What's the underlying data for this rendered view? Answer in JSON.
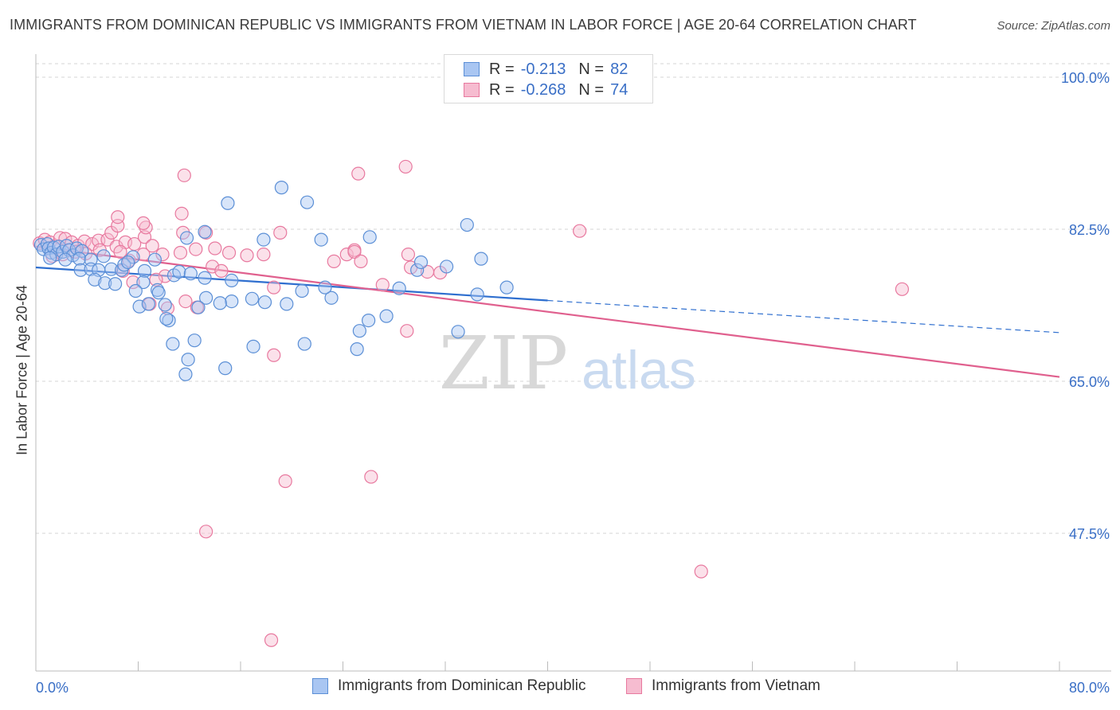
{
  "title": "IMMIGRANTS FROM DOMINICAN REPUBLIC VS IMMIGRANTS FROM VIETNAM IN LABOR FORCE | AGE 20-64 CORRELATION CHART",
  "source": "Source: ZipAtlas.com",
  "watermark": {
    "zip": "ZIP",
    "atlas": "atlas"
  },
  "legend": {
    "series1": {
      "r_label": "R =",
      "r_value": "-0.213",
      "n_label": "N =",
      "n_value": "82"
    },
    "series2": {
      "r_label": "R =",
      "r_value": "-0.268",
      "n_label": "N =",
      "n_value": "74"
    }
  },
  "bottom_legend": {
    "series1": "Immigrants from Dominican Republic",
    "series2": "Immigrants from Vietnam"
  },
  "colors": {
    "blue_fill": "#a9c6f2",
    "blue_stroke": "#5b8fd6",
    "blue_line": "#2f6fcf",
    "pink_fill": "#f6bcd0",
    "pink_stroke": "#e8799f",
    "pink_line": "#e0608e",
    "axis_label": "#3a6fc6",
    "grid": "#d6d6d6"
  },
  "chart_data": {
    "type": "scatter",
    "title": "IMMIGRANTS FROM DOMINICAN REPUBLIC VS IMMIGRANTS FROM VIETNAM IN LABOR FORCE | AGE 20-64 CORRELATION CHART",
    "xlabel": "",
    "ylabel": "In Labor Force | Age 20-64",
    "xlim": [
      0,
      80
    ],
    "ylim": [
      32,
      102
    ],
    "x_tick_labels": [
      "0.0%",
      "80.0%"
    ],
    "y_ticks": [
      100.0,
      82.5,
      65.0,
      47.5
    ],
    "y_tick_labels": [
      "100.0%",
      "82.5%",
      "65.0%",
      "47.5%"
    ],
    "series": [
      {
        "name": "Immigrants from Dominican Republic",
        "color": "blue",
        "R": -0.213,
        "N": 82,
        "points": [
          [
            0.4,
            80.7
          ],
          [
            0.6,
            80.2
          ],
          [
            0.9,
            80.8
          ],
          [
            1.0,
            80.3
          ],
          [
            1.2,
            79.8
          ],
          [
            1.4,
            80.4
          ],
          [
            1.6,
            79.6
          ],
          [
            1.8,
            80.5
          ],
          [
            2.1,
            79.9
          ],
          [
            2.4,
            80.6
          ],
          [
            2.6,
            80.1
          ],
          [
            2.9,
            79.5
          ],
          [
            3.2,
            80.3
          ],
          [
            3.6,
            80.0
          ],
          [
            1.1,
            79.2
          ],
          [
            2.3,
            79.0
          ],
          [
            3.4,
            79.1
          ],
          [
            4.3,
            79.0
          ],
          [
            5.3,
            79.4
          ],
          [
            7.6,
            79.3
          ],
          [
            9.3,
            79.0
          ],
          [
            3.5,
            77.8
          ],
          [
            4.3,
            77.9
          ],
          [
            4.9,
            77.8
          ],
          [
            5.9,
            77.9
          ],
          [
            6.7,
            77.8
          ],
          [
            8.5,
            77.7
          ],
          [
            10.8,
            77.2
          ],
          [
            11.2,
            77.6
          ],
          [
            12.1,
            77.4
          ],
          [
            13.2,
            76.9
          ],
          [
            15.3,
            76.6
          ],
          [
            6.9,
            78.4
          ],
          [
            7.2,
            78.7
          ],
          [
            4.6,
            76.7
          ],
          [
            5.4,
            76.3
          ],
          [
            6.2,
            76.2
          ],
          [
            8.4,
            76.4
          ],
          [
            9.5,
            75.5
          ],
          [
            9.6,
            75.2
          ],
          [
            7.8,
            75.4
          ],
          [
            13.3,
            74.6
          ],
          [
            15.3,
            74.2
          ],
          [
            17.9,
            74.1
          ],
          [
            19.6,
            73.9
          ],
          [
            14.4,
            74.0
          ],
          [
            16.9,
            74.5
          ],
          [
            12.7,
            73.5
          ],
          [
            10.4,
            72.0
          ],
          [
            8.1,
            73.6
          ],
          [
            8.8,
            73.9
          ],
          [
            10.1,
            73.8
          ],
          [
            10.2,
            72.2
          ],
          [
            10.7,
            69.3
          ],
          [
            11.9,
            67.5
          ],
          [
            12.4,
            69.7
          ],
          [
            14.8,
            66.5
          ],
          [
            11.7,
            65.8
          ],
          [
            17.0,
            69.0
          ],
          [
            21.0,
            69.3
          ],
          [
            25.1,
            68.7
          ],
          [
            26.0,
            72.0
          ],
          [
            25.3,
            70.8
          ],
          [
            27.4,
            72.5
          ],
          [
            23.1,
            74.6
          ],
          [
            22.6,
            75.8
          ],
          [
            20.8,
            75.4
          ],
          [
            28.4,
            75.7
          ],
          [
            29.8,
            77.8
          ],
          [
            30.1,
            78.7
          ],
          [
            32.1,
            78.2
          ],
          [
            17.8,
            81.3
          ],
          [
            19.2,
            87.3
          ],
          [
            21.2,
            85.6
          ],
          [
            15.0,
            85.5
          ],
          [
            11.8,
            81.5
          ],
          [
            13.2,
            82.2
          ],
          [
            22.3,
            81.3
          ],
          [
            26.1,
            81.6
          ],
          [
            33.7,
            83.0
          ],
          [
            34.8,
            79.1
          ],
          [
            34.5,
            75.0
          ],
          [
            36.8,
            75.8
          ],
          [
            33.0,
            70.7
          ]
        ]
      },
      {
        "name": "Immigrants from Vietnam",
        "color": "pink",
        "R": -0.268,
        "N": 74,
        "points": [
          [
            0.3,
            80.9
          ],
          [
            0.7,
            81.3
          ],
          [
            1.1,
            81.0
          ],
          [
            1.5,
            80.6
          ],
          [
            1.9,
            81.5
          ],
          [
            2.3,
            81.4
          ],
          [
            2.8,
            81.0
          ],
          [
            3.3,
            80.6
          ],
          [
            3.8,
            81.1
          ],
          [
            4.4,
            80.8
          ],
          [
            4.9,
            81.2
          ],
          [
            5.6,
            81.3
          ],
          [
            6.3,
            80.5
          ],
          [
            7.0,
            81.0
          ],
          [
            7.7,
            80.8
          ],
          [
            8.5,
            81.6
          ],
          [
            9.1,
            80.6
          ],
          [
            1.3,
            79.4
          ],
          [
            2.1,
            79.6
          ],
          [
            3.1,
            79.9
          ],
          [
            3.9,
            79.7
          ],
          [
            5.0,
            80.1
          ],
          [
            6.6,
            79.9
          ],
          [
            7.3,
            78.9
          ],
          [
            8.4,
            79.6
          ],
          [
            9.9,
            79.6
          ],
          [
            11.3,
            79.8
          ],
          [
            12.5,
            80.2
          ],
          [
            14.0,
            80.3
          ],
          [
            15.1,
            79.8
          ],
          [
            16.5,
            79.5
          ],
          [
            17.8,
            79.6
          ],
          [
            13.8,
            78.2
          ],
          [
            14.5,
            77.7
          ],
          [
            10.1,
            77.1
          ],
          [
            9.4,
            76.7
          ],
          [
            6.8,
            77.7
          ],
          [
            7.6,
            76.4
          ],
          [
            8.9,
            73.9
          ],
          [
            10.3,
            73.4
          ],
          [
            11.7,
            74.2
          ],
          [
            12.6,
            73.5
          ],
          [
            5.9,
            82.1
          ],
          [
            6.4,
            82.9
          ],
          [
            8.6,
            82.7
          ],
          [
            11.5,
            82.1
          ],
          [
            13.3,
            82.1
          ],
          [
            6.4,
            83.9
          ],
          [
            8.4,
            83.2
          ],
          [
            11.4,
            84.3
          ],
          [
            11.6,
            88.7
          ],
          [
            19.1,
            82.1
          ],
          [
            24.3,
            79.6
          ],
          [
            24.9,
            80.1
          ],
          [
            24.9,
            79.9
          ],
          [
            23.3,
            78.8
          ],
          [
            25.4,
            78.8
          ],
          [
            18.6,
            75.8
          ],
          [
            27.1,
            76.1
          ],
          [
            29.1,
            79.6
          ],
          [
            29.3,
            78.1
          ],
          [
            30.6,
            77.6
          ],
          [
            31.6,
            77.5
          ],
          [
            29.0,
            70.8
          ],
          [
            18.6,
            68.0
          ],
          [
            25.2,
            88.9
          ],
          [
            28.9,
            89.7
          ],
          [
            42.5,
            82.3
          ],
          [
            67.7,
            75.6
          ],
          [
            19.5,
            53.5
          ],
          [
            26.2,
            54.0
          ],
          [
            13.3,
            47.7
          ],
          [
            52.0,
            43.1
          ],
          [
            18.4,
            35.2
          ]
        ]
      }
    ],
    "trend_lines": [
      {
        "series": "Immigrants from Dominican Republic",
        "x": [
          0,
          40
        ],
        "y": [
          78.1,
          74.3
        ],
        "dashed_extension": {
          "x": [
            40,
            80
          ],
          "y": [
            74.3,
            70.6
          ]
        }
      },
      {
        "series": "Immigrants from Vietnam",
        "x": [
          0,
          80
        ],
        "y": [
          80.5,
          65.5
        ]
      }
    ]
  }
}
